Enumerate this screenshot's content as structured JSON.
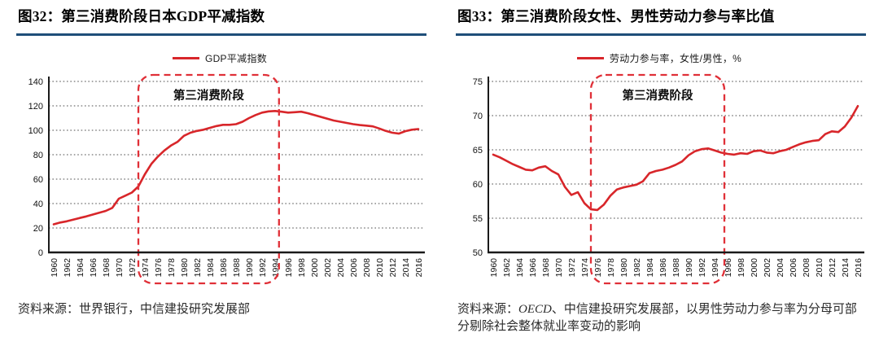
{
  "style": {
    "rule_blue": "#1F4E79",
    "line_red": "#D8262A",
    "annotation_red": "#E03038",
    "grid_color": "#4d4d4d",
    "axis_color": "#1a1a1a",
    "text_color": "#111111"
  },
  "sources": [
    {
      "prefix": "资料来源：",
      "italic": "",
      "body": "世界银行，中信建投研究发展部"
    },
    {
      "prefix": "资料来源：",
      "italic": "OECD",
      "body": "、中信建投研究发展部，以男性劳动力参与率为分母可部分剔除社会整体就业率变动的影响"
    }
  ],
  "chart_data": [
    {
      "type": "line",
      "title": "图32：第三消费阶段日本GDP平减指数",
      "legend": [
        "GDP平减指数"
      ],
      "xlabel": "",
      "ylabel": "",
      "ylim": [
        0,
        140
      ],
      "yticks": [
        0,
        20,
        40,
        60,
        80,
        100,
        120,
        140
      ],
      "grid": "dotted-horizontal",
      "legend_position": "top-center",
      "x_start": 1960,
      "x_end": 2016,
      "x_ticks": [
        1960,
        1962,
        1964,
        1966,
        1968,
        1970,
        1972,
        1974,
        1976,
        1978,
        1980,
        1982,
        1984,
        1986,
        1988,
        1990,
        1992,
        1994,
        1996,
        1998,
        2000,
        2002,
        2004,
        2006,
        2008,
        2010,
        2012,
        2014,
        2016
      ],
      "values": [
        23.0,
        24.5,
        25.5,
        26.8,
        28.2,
        29.5,
        31.0,
        32.5,
        34.0,
        36.5,
        44.0,
        46.5,
        49.0,
        54.0,
        64.0,
        72.5,
        78.5,
        83.5,
        87.5,
        90.5,
        95.5,
        98.0,
        99.5,
        100.5,
        102.0,
        103.5,
        104.5,
        104.5,
        105.0,
        107.0,
        110.0,
        112.5,
        114.5,
        115.5,
        115.8,
        115.2,
        114.5,
        114.8,
        115.2,
        114.0,
        112.5,
        111.0,
        109.5,
        108.0,
        107.0,
        106.0,
        105.0,
        104.3,
        103.8,
        103.2,
        101.5,
        99.5,
        98.0,
        97.3,
        99.3,
        100.5,
        101.0
      ],
      "annotation": {
        "label": "第三消费阶段",
        "from_year": 1973,
        "to_year": 1994.6
      }
    },
    {
      "type": "line",
      "title": "图33：第三消费阶段女性、男性劳动力参与率比值",
      "legend": [
        "劳动力参与率，女性/男性，%"
      ],
      "xlabel": "",
      "ylabel": "",
      "ylim": [
        50,
        75
      ],
      "yticks": [
        50,
        55,
        60,
        65,
        70,
        75
      ],
      "grid": "dotted-horizontal",
      "legend_position": "top-center",
      "x_start": 1960,
      "x_end": 2016,
      "x_ticks": [
        1960,
        1962,
        1964,
        1966,
        1968,
        1970,
        1972,
        1974,
        1976,
        1978,
        1980,
        1982,
        1984,
        1986,
        1988,
        1990,
        1992,
        1994,
        1996,
        1998,
        2000,
        2002,
        2004,
        2006,
        2008,
        2010,
        2012,
        2014,
        2016
      ],
      "values": [
        64.3,
        63.9,
        63.4,
        62.9,
        62.5,
        62.1,
        62.0,
        62.4,
        62.6,
        61.9,
        61.4,
        59.6,
        58.4,
        58.8,
        57.2,
        56.3,
        56.2,
        57.0,
        58.3,
        59.2,
        59.5,
        59.7,
        59.9,
        60.4,
        61.6,
        61.9,
        62.1,
        62.4,
        62.8,
        63.3,
        64.2,
        64.8,
        65.1,
        65.2,
        64.9,
        64.6,
        64.4,
        64.3,
        64.5,
        64.4,
        64.8,
        64.9,
        64.6,
        64.5,
        64.8,
        65.0,
        65.4,
        65.8,
        66.1,
        66.3,
        66.4,
        67.3,
        67.7,
        67.6,
        68.4,
        69.7,
        71.4
      ],
      "annotation": {
        "label": "第三消费阶段",
        "from_year": 1975,
        "to_year": 1995.5
      }
    }
  ]
}
